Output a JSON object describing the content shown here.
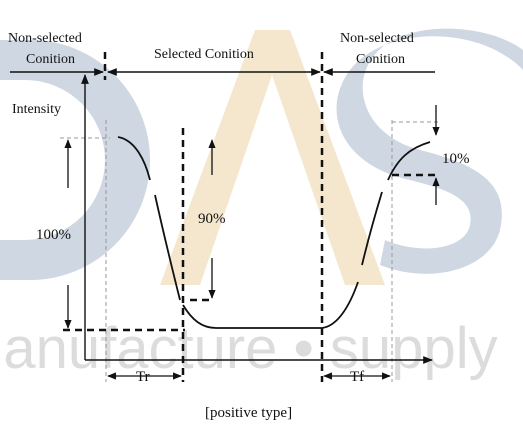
{
  "watermark": {
    "letters": "DAS",
    "tagline": "manufacture • supply",
    "colors": {
      "d": "#c9d3df",
      "a": "#f3e5c8",
      "s": "#c9d3df",
      "tagline": "#d9d9d9"
    }
  },
  "labels": {
    "non_selected_left_1": "Non-selected",
    "non_selected_left_2": "Conition",
    "selected": "Selected Conition",
    "non_selected_right_1": "Non-selected",
    "non_selected_right_2": "Conition",
    "intensity": "Intensity",
    "pct_100": "100%",
    "pct_90": "90%",
    "pct_10": "10%",
    "tr": "Tr",
    "tf": "Tf",
    "caption": "[positive type]"
  },
  "colors": {
    "ink": "#111111",
    "guide": "#999999"
  }
}
